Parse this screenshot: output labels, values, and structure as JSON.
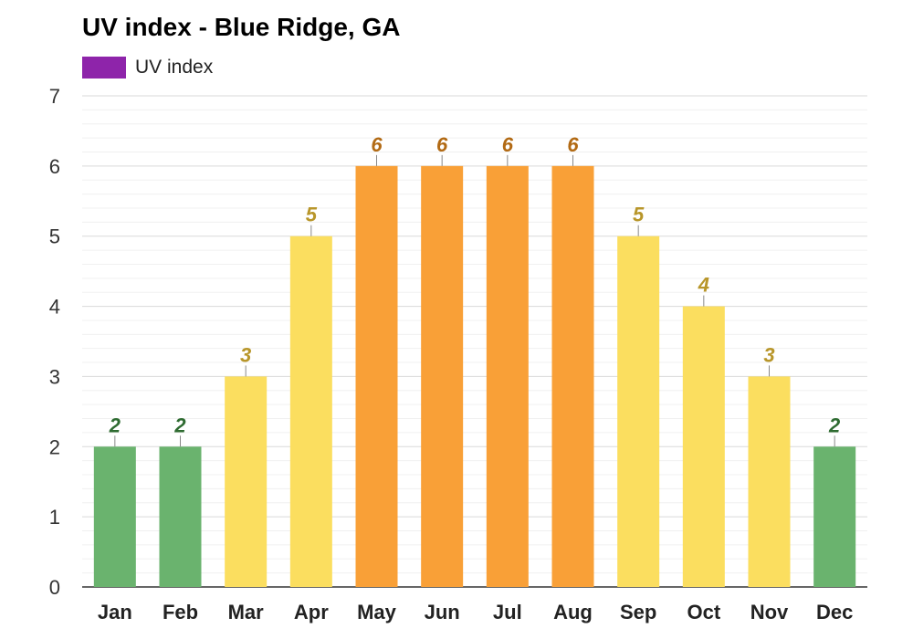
{
  "title": "UV index - Blue Ridge, GA",
  "legend": {
    "label": "UV index",
    "color": "#8e24aa"
  },
  "colors": {
    "low": "#6ab36e",
    "moderate": "#fbde5f",
    "high": "#f9a037",
    "label_low": "#2e6b31",
    "label_moderate": "#b8962a",
    "label_high": "#b26a14"
  },
  "chart_data": {
    "type": "bar",
    "title": "UV index - Blue Ridge, GA",
    "xlabel": "",
    "ylabel": "",
    "ylim": [
      0,
      7
    ],
    "yticks": [
      "0",
      "1",
      "2",
      "3",
      "4",
      "5",
      "6",
      "7"
    ],
    "grid": true,
    "legend_position": "top-left",
    "categories": [
      "Jan",
      "Feb",
      "Mar",
      "Apr",
      "May",
      "Jun",
      "Jul",
      "Aug",
      "Sep",
      "Oct",
      "Nov",
      "Dec"
    ],
    "series": [
      {
        "name": "UV index",
        "values": [
          2,
          2,
          3,
          5,
          6,
          6,
          6,
          6,
          5,
          4,
          3,
          2
        ]
      }
    ],
    "data_labels": [
      "2",
      "2",
      "3",
      "5",
      "6",
      "6",
      "6",
      "6",
      "5",
      "4",
      "3",
      "2"
    ]
  }
}
